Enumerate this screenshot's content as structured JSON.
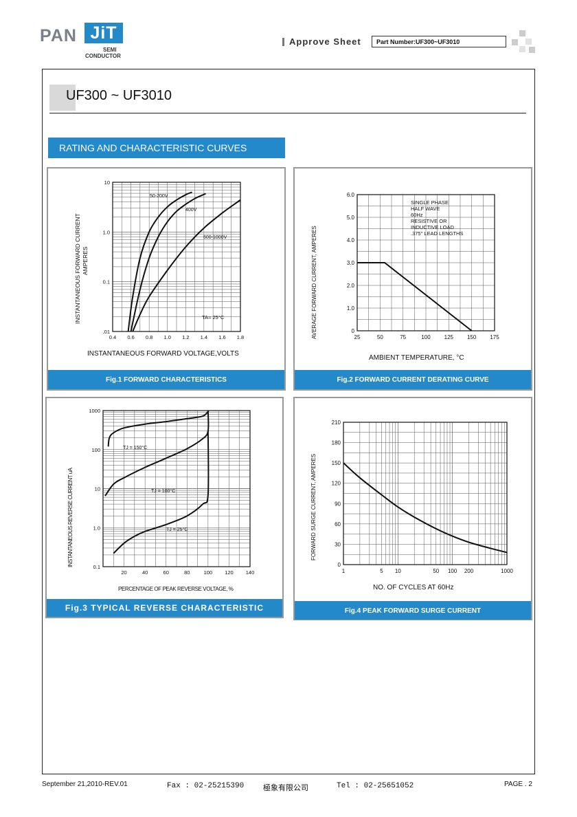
{
  "header": {
    "logo_pan": "PAN",
    "logo_jit": "JiT",
    "logo_semi": "SEMI",
    "logo_conductor": "CONDUCTOR",
    "approve_sheet": "Approve  Sheet",
    "part_number": "Part Number:UF300~UF3010"
  },
  "title": "UF300 ~ UF3010",
  "section_heading": "RATING AND CHARACTERISTIC CURVES",
  "colors": {
    "accent": "#2489c9",
    "frame": "#222222",
    "panel_border": "#999999"
  },
  "figures": {
    "fig1": {
      "caption": "Fig.1 FORWARD CHARACTERISTICS",
      "ylabel1": "INSTANTANEOUS FORWARD CURRENT",
      "ylabel2": "AMPERES",
      "xlabel": "INSTANTANEOUS FORWARD VOLTAGE,VOLTS",
      "yticks": [
        "10",
        "1.0",
        "0.1",
        ".01"
      ],
      "xticks": [
        "0.4",
        "0.6",
        "0.8",
        "1.0",
        "1.2",
        "1.4",
        "1.6",
        "1.8"
      ],
      "labels": [
        "50-200V",
        "400V",
        "600-1000V"
      ],
      "ta_label": "TA= 25°C"
    },
    "fig2": {
      "caption": "Fig.2 FORWARD CURRENT DERATING CURVE",
      "ylabel": "AVERAGE FORWARD CURRENT, AMPERES",
      "xlabel": "AMBIENT TEMPERATURE, °C",
      "yticks": [
        "6.0",
        "5.0",
        "4.0",
        "3.0",
        "2.0",
        "1.0",
        "0"
      ],
      "xticks": [
        "25",
        "50",
        "75",
        "100",
        "125",
        "150",
        "175"
      ],
      "notes": [
        "SINGLE PHASE",
        "HALF WAVE",
        "60Hz",
        "RESISTIVE OR",
        "INDUCTIVE LOAD",
        ".375\" LEAD LENGTHS"
      ]
    },
    "fig3": {
      "caption": "Fig.3  TYPICAL REVERSE CHARACTERISTIC",
      "ylabel": "INSTANTANEOUS REVERSE CURRENT uA",
      "xlabel": "PERCENTAGE OF PEAK REVERSE VOLTAGE, %",
      "yticks": [
        "1000",
        "100",
        "10",
        "1.0",
        "0.1"
      ],
      "xticks": [
        "20",
        "40",
        "60",
        "80",
        "100",
        "120",
        "140"
      ],
      "labels": [
        "TJ = 150°C",
        "TJ = 100°C",
        "TJ = 25°C"
      ]
    },
    "fig4": {
      "caption": "Fig.4 PEAK FORWARD SURGE CURRENT",
      "ylabel": "FORWARD SURGE CURRENT, AMPERES",
      "xlabel": "NO. OF CYCLES AT 60Hz",
      "yticks": [
        "210",
        "180",
        "150",
        "120",
        "90",
        "60",
        "30",
        "0"
      ],
      "xticks": [
        "1",
        "5",
        "10",
        "50",
        "100",
        "200",
        "1000"
      ]
    }
  },
  "chart_data": [
    {
      "type": "line",
      "title": "Fig.1 FORWARD CHARACTERISTICS",
      "xlabel": "INSTANTANEOUS FORWARD VOLTAGE,VOLTS",
      "ylabel": "INSTANTANEOUS FORWARD CURRENT AMPERES",
      "xlim": [
        0.4,
        1.8
      ],
      "ylim": [
        0.01,
        10
      ],
      "yscale": "log",
      "grid": true,
      "series": [
        {
          "name": "50-200V",
          "x": [
            0.57,
            0.62,
            0.7,
            0.8,
            0.9,
            1.0,
            1.1,
            1.2,
            1.27
          ],
          "y": [
            0.01,
            0.05,
            0.3,
            1.0,
            2.0,
            3.2,
            4.4,
            5.6,
            6.3
          ]
        },
        {
          "name": "400V",
          "x": [
            0.6,
            0.7,
            0.8,
            0.9,
            1.0,
            1.1,
            1.2,
            1.3,
            1.42
          ],
          "y": [
            0.01,
            0.07,
            0.3,
            0.8,
            1.6,
            2.6,
            3.6,
            4.7,
            5.9
          ]
        },
        {
          "name": "600-1000V",
          "x": [
            0.62,
            0.7,
            0.8,
            1.0,
            1.2,
            1.4,
            1.6,
            1.75,
            1.8
          ],
          "y": [
            0.01,
            0.022,
            0.05,
            0.17,
            0.5,
            1.2,
            2.4,
            3.8,
            4.4
          ]
        }
      ],
      "annotation": "TA= 25°C"
    },
    {
      "type": "line",
      "title": "Fig.2 FORWARD CURRENT DERATING CURVE",
      "xlabel": "AMBIENT TEMPERATURE, °C",
      "ylabel": "AVERAGE FORWARD CURRENT, AMPERES",
      "xlim": [
        25,
        175
      ],
      "ylim": [
        0,
        6
      ],
      "grid": true,
      "series": [
        {
          "x": [
            25,
            55,
            150
          ],
          "y": [
            3.0,
            3.0,
            0
          ]
        }
      ]
    },
    {
      "type": "line",
      "title": "Fig.3 TYPICAL REVERSE CHARACTERISTIC",
      "xlabel": "PERCENTAGE OF PEAK REVERSE VOLTAGE, %",
      "ylabel": "INSTANTANEOUS REVERSE CURRENT uA",
      "xlim": [
        0,
        140
      ],
      "ylim": [
        0.1,
        1000
      ],
      "yscale": "log",
      "grid": true,
      "series": [
        {
          "name": "TJ = 150°C",
          "x": [
            5,
            6,
            10,
            20,
            40,
            60,
            80,
            95,
            100,
            100
          ],
          "y": [
            120,
            200,
            270,
            360,
            450,
            520,
            620,
            720,
            950,
            950
          ]
        },
        {
          "name": "TJ = 100°C",
          "x": [
            2,
            10,
            20,
            40,
            60,
            80,
            95,
            100,
            100
          ],
          "y": [
            6.5,
            13,
            19,
            35,
            60,
            105,
            190,
            300,
            950
          ]
        },
        {
          "name": "TJ = 25°C",
          "x": [
            10,
            20,
            30,
            40,
            60,
            80,
            95,
            100,
            100
          ],
          "y": [
            0.22,
            0.4,
            0.6,
            0.8,
            1.2,
            2.0,
            4.0,
            7.0,
            300
          ]
        }
      ]
    },
    {
      "type": "line",
      "title": "Fig.4 PEAK FORWARD SURGE CURRENT",
      "xlabel": "NO. OF CYCLES AT 60Hz",
      "ylabel": "FORWARD SURGE CURRENT, AMPERES",
      "xlim": [
        1,
        1000
      ],
      "ylim": [
        0,
        210
      ],
      "xscale": "log",
      "grid": true,
      "series": [
        {
          "x": [
            1,
            2,
            5,
            10,
            20,
            50,
            100,
            200,
            500,
            1000
          ],
          "y": [
            150,
            128,
            103,
            85,
            70,
            53,
            42,
            33,
            24,
            18
          ]
        }
      ]
    }
  ],
  "footer": {
    "date": "September 21,2010-REV.01",
    "fax": "Fax : 02-25215390",
    "company": "極象有限公司",
    "tel": "Tel : 02-25651052",
    "page": "PAGE . 2"
  }
}
